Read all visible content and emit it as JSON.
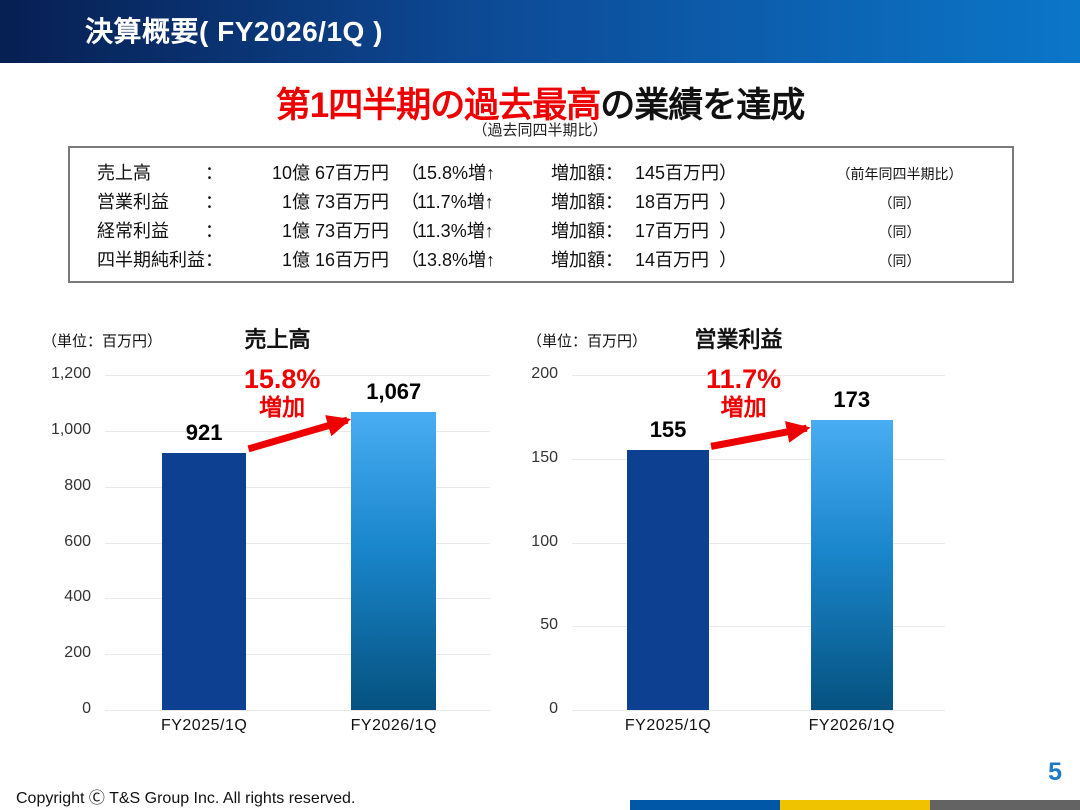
{
  "header": {
    "title": "決算概要( FY2026/1Q )"
  },
  "headline": {
    "highlight": "第1四半期の過去最高",
    "rest": "の業績を達成",
    "note": "（過去同四半期比）"
  },
  "summary_box": {
    "rows": [
      {
        "label": "売上高",
        "colon": "：",
        "amount": "10億 67百万円",
        "open": "（",
        "percent": "15.8%増↑",
        "delta_label": "増加額：",
        "delta_value": "145百万円",
        "close": "）",
        "note": "（前年同四半期比）"
      },
      {
        "label": "営業利益",
        "colon": "：",
        "amount": "1億 73百万円",
        "open": "（",
        "percent": "11.7%増↑",
        "delta_label": "増加額：",
        "delta_value": "18百万円",
        "close": "）",
        "note": "（同）"
      },
      {
        "label": "経常利益",
        "colon": "：",
        "amount": "1億 73百万円",
        "open": "（",
        "percent": "11.3%増↑",
        "delta_label": "増加額：",
        "delta_value": "17百万円",
        "close": "）",
        "note": "（同）"
      },
      {
        "label": "四半期純利益",
        "colon": "：",
        "amount": "1億 16百万円",
        "open": "（",
        "percent": "13.8%増↑",
        "delta_label": "増加額：",
        "delta_value": "14百万円",
        "close": "）",
        "note": "（同）"
      }
    ]
  },
  "chart_data": [
    {
      "type": "bar",
      "title": "売上高",
      "unit_label": "（単位：百万円）",
      "categories": [
        "FY2025/1Q",
        "FY2026/1Q"
      ],
      "values": [
        921,
        1067
      ],
      "value_labels": [
        "921",
        "1,067"
      ],
      "ylim": [
        0,
        1200
      ],
      "ytick_values": [
        0,
        200,
        400,
        600,
        800,
        1000,
        1200
      ],
      "ytick_labels": [
        "0",
        "200",
        "400",
        "600",
        "800",
        "1,000",
        "1,200"
      ],
      "grid": true,
      "legend": "none",
      "annotation": {
        "percent": "15.8%",
        "word": "増加"
      },
      "bar_colors": [
        {
          "type": "solid",
          "color": "#0d4091"
        },
        {
          "type": "gradient",
          "top": "#49adf3",
          "mid": "#1a86cc",
          "bottom": "#05527f"
        }
      ]
    },
    {
      "type": "bar",
      "title": "営業利益",
      "unit_label": "（単位：百万円）",
      "categories": [
        "FY2025/1Q",
        "FY2026/1Q"
      ],
      "values": [
        155,
        173
      ],
      "value_labels": [
        "155",
        "173"
      ],
      "ylim": [
        0,
        200
      ],
      "ytick_values": [
        0,
        50,
        100,
        150,
        200
      ],
      "ytick_labels": [
        "0",
        "50",
        "100",
        "150",
        "200"
      ],
      "grid": true,
      "legend": "none",
      "annotation": {
        "percent": "11.7%",
        "word": "増加"
      },
      "bar_colors": [
        {
          "type": "solid",
          "color": "#0d4091"
        },
        {
          "type": "gradient",
          "top": "#49adf3",
          "mid": "#1a86cc",
          "bottom": "#05527f"
        }
      ]
    }
  ],
  "footer": {
    "copyright": "Copyright Ⓒ T&S Group Inc. All rights reserved.",
    "page": "5"
  },
  "colors": {
    "accent_red": "#ee0000",
    "header_gradient_left": "#071f52",
    "header_gradient_mid": "#0d4a96",
    "header_gradient_right": "#0b76c8",
    "page_number_blue": "#1e7ac6",
    "box_border_gray": "#7a7a7a",
    "bar_navy": "#0d4091",
    "strip": [
      "#0057a8",
      "#f0c300",
      "#636363"
    ]
  }
}
